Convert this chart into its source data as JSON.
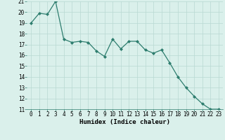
{
  "x": [
    0,
    1,
    2,
    3,
    4,
    5,
    6,
    7,
    8,
    9,
    10,
    11,
    12,
    13,
    14,
    15,
    16,
    17,
    18,
    19,
    20,
    21,
    22,
    23
  ],
  "y": [
    19,
    19.9,
    19.8,
    21.0,
    17.5,
    17.2,
    17.3,
    17.2,
    16.4,
    15.9,
    17.5,
    16.6,
    17.3,
    17.3,
    16.5,
    16.2,
    16.5,
    15.3,
    14.0,
    13.0,
    12.2,
    11.5,
    11.0,
    11.0
  ],
  "line_color": "#2d7d6e",
  "marker": "D",
  "marker_size": 2.0,
  "line_width": 0.9,
  "bg_color": "#daf0eb",
  "grid_color": "#b8d8d2",
  "xlabel": "Humidex (Indice chaleur)",
  "ylim": [
    11,
    21
  ],
  "xlim": [
    -0.5,
    23.5
  ],
  "yticks": [
    11,
    12,
    13,
    14,
    15,
    16,
    17,
    18,
    19,
    20,
    21
  ],
  "xticks": [
    0,
    1,
    2,
    3,
    4,
    5,
    6,
    7,
    8,
    9,
    10,
    11,
    12,
    13,
    14,
    15,
    16,
    17,
    18,
    19,
    20,
    21,
    22,
    23
  ],
  "xlabel_fontsize": 6.5,
  "tick_fontsize": 5.5,
  "fig_width": 3.2,
  "fig_height": 2.0,
  "dpi": 100
}
